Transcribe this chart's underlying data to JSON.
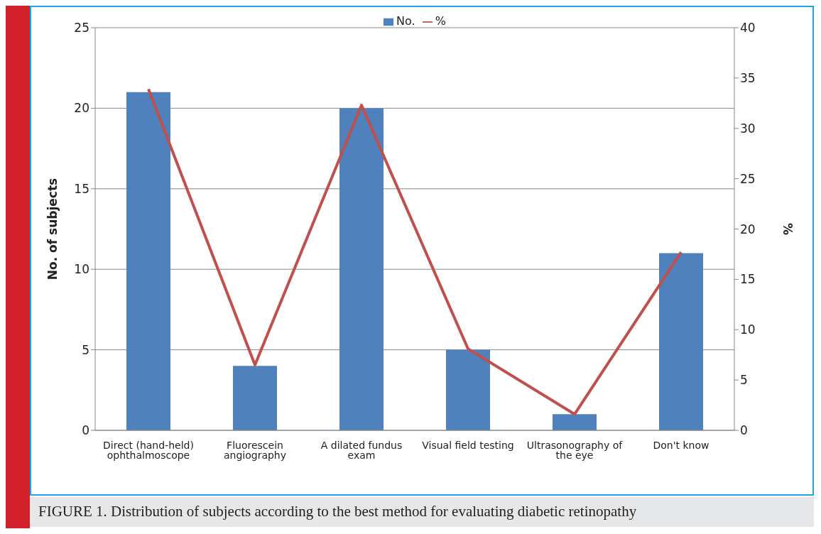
{
  "chart_data": {
    "type": "bar",
    "categories": [
      "Direct (hand-held) ophthalmoscope",
      "Fluorescein angiography",
      "A dilated fundus exam",
      "Visual field testing",
      "Ultrasonography of the eye",
      "Don't know"
    ],
    "series": [
      {
        "name": "No.",
        "color": "#4f81bd",
        "values": [
          21,
          4,
          20,
          5,
          1,
          11
        ]
      },
      {
        "name": "%",
        "type": "line",
        "axis": "y2",
        "color": "#c0504d",
        "values": [
          33.9,
          6.5,
          32.3,
          8.1,
          1.6,
          17.7
        ]
      }
    ],
    "ylabel": "No. of subjects",
    "y2label": "%",
    "ylim": [
      0,
      25
    ],
    "yticks": [
      0,
      5,
      10,
      15,
      20,
      25
    ],
    "y2lim": [
      0,
      40
    ],
    "y2ticks": [
      0,
      5,
      10,
      15,
      20,
      25,
      30,
      35,
      40
    ],
    "grid": "y",
    "legend": "top",
    "marker": "none",
    "line_style": "solid",
    "annotations": [
      "FIGURE 1. Distribution of subjects according to the best method for evaluating diabetic retinopathy"
    ]
  }
}
